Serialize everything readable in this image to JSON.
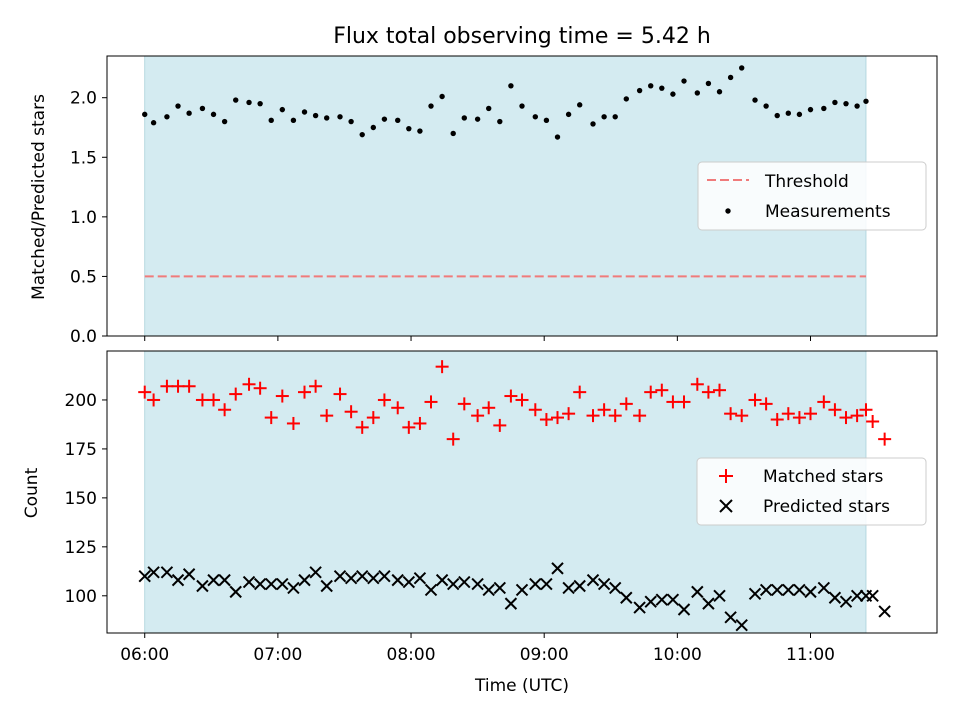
{
  "title": "Flux total observing time = 5.42 h",
  "xlabel": "Time (UTC)",
  "xticks": [
    "06:00",
    "07:00",
    "08:00",
    "09:00",
    "10:00",
    "11:00"
  ],
  "colors": {
    "band": "#d4ebf1",
    "threshold": "#f07b7b",
    "matched": "#ff0000",
    "predicted": "#000000",
    "measurement": "#000000"
  },
  "chart_data": [
    {
      "type": "scatter",
      "ylabel": "Matched/Predicted stars",
      "ylim": [
        0,
        2.35
      ],
      "yticks": [
        "0.0",
        "0.5",
        "1.0",
        "1.5",
        "2.0"
      ],
      "xlim": [
        "05:43",
        "11:57"
      ],
      "shaded_region": [
        "06:00",
        "11:25"
      ],
      "grid": false,
      "legend_position": "center-right",
      "threshold": {
        "name": "Threshold",
        "y": 0.5,
        "x_range": [
          "06:00",
          "11:25"
        ]
      },
      "series": [
        {
          "name": "Measurements",
          "x": [
            "06:00",
            "06:04",
            "06:10",
            "06:15",
            "06:20",
            "06:26",
            "06:31",
            "06:36",
            "06:41",
            "06:47",
            "06:52",
            "06:57",
            "07:02",
            "07:07",
            "07:12",
            "07:17",
            "07:22",
            "07:28",
            "07:33",
            "07:38",
            "07:43",
            "07:48",
            "07:54",
            "07:59",
            "08:04",
            "08:09",
            "08:14",
            "08:19",
            "08:24",
            "08:30",
            "08:35",
            "08:40",
            "08:45",
            "08:50",
            "08:56",
            "09:01",
            "09:06",
            "09:11",
            "09:16",
            "09:22",
            "09:27",
            "09:32",
            "09:37",
            "09:43",
            "09:48",
            "09:53",
            "09:58",
            "10:03",
            "10:09",
            "10:14",
            "10:19",
            "10:24",
            "10:29",
            "10:35",
            "10:40",
            "10:45",
            "10:50",
            "10:55",
            "11:00",
            "11:06",
            "11:11",
            "11:16",
            "11:21",
            "11:25"
          ],
          "y": [
            1.86,
            1.79,
            1.84,
            1.93,
            1.87,
            1.91,
            1.86,
            1.8,
            1.98,
            1.96,
            1.95,
            1.81,
            1.9,
            1.81,
            1.88,
            1.85,
            1.83,
            1.84,
            1.8,
            1.69,
            1.75,
            1.82,
            1.81,
            1.74,
            1.72,
            1.93,
            2.01,
            1.7,
            1.83,
            1.82,
            1.91,
            1.8,
            2.1,
            1.93,
            1.84,
            1.81,
            1.67,
            1.86,
            1.94,
            1.78,
            1.84,
            1.84,
            1.99,
            2.06,
            2.1,
            2.08,
            2.03,
            2.14,
            2.04,
            2.12,
            2.05,
            2.17,
            2.25,
            1.98,
            1.93,
            1.85,
            1.87,
            1.86,
            1.9,
            1.91,
            1.96,
            1.95,
            1.93,
            1.97
          ]
        }
      ]
    },
    {
      "type": "scatter",
      "ylabel": "Count",
      "ylim": [
        81,
        225
      ],
      "yticks": [
        "100",
        "125",
        "150",
        "175",
        "200"
      ],
      "xlim": [
        "05:43",
        "11:57"
      ],
      "shaded_region": [
        "06:00",
        "11:25"
      ],
      "grid": false,
      "legend_position": "center-right",
      "series": [
        {
          "name": "Matched stars",
          "x": [
            "06:00",
            "06:04",
            "06:10",
            "06:15",
            "06:20",
            "06:26",
            "06:31",
            "06:36",
            "06:41",
            "06:47",
            "06:52",
            "06:57",
            "07:02",
            "07:07",
            "07:12",
            "07:17",
            "07:22",
            "07:28",
            "07:33",
            "07:38",
            "07:43",
            "07:48",
            "07:54",
            "07:59",
            "08:04",
            "08:09",
            "08:14",
            "08:19",
            "08:24",
            "08:30",
            "08:35",
            "08:40",
            "08:45",
            "08:50",
            "08:56",
            "09:01",
            "09:06",
            "09:11",
            "09:16",
            "09:22",
            "09:27",
            "09:32",
            "09:37",
            "09:43",
            "09:48",
            "09:53",
            "09:58",
            "10:03",
            "10:09",
            "10:14",
            "10:19",
            "10:24",
            "10:29",
            "10:35",
            "10:40",
            "10:45",
            "10:50",
            "10:55",
            "11:00",
            "11:06",
            "11:11",
            "11:16",
            "11:21",
            "11:25",
            "11:28"
          ],
          "y": [
            204,
            200,
            207,
            207,
            207,
            200,
            200,
            195,
            203,
            208,
            206,
            191,
            202,
            188,
            204,
            207,
            192,
            203,
            194,
            186,
            191,
            200,
            196,
            186,
            188,
            199,
            217,
            180,
            198,
            192,
            196,
            187,
            202,
            200,
            195,
            190,
            191,
            193,
            204,
            192,
            195,
            192,
            198,
            192,
            204,
            205,
            199,
            199,
            208,
            204,
            205,
            193,
            192,
            200,
            198,
            190,
            193,
            191,
            193,
            199,
            195,
            191,
            192,
            195,
            189
          ],
          "extra_last_y": 180
        },
        {
          "name": "Predicted stars",
          "x": [
            "06:00",
            "06:04",
            "06:10",
            "06:15",
            "06:20",
            "06:26",
            "06:31",
            "06:36",
            "06:41",
            "06:47",
            "06:52",
            "06:57",
            "07:02",
            "07:07",
            "07:12",
            "07:17",
            "07:22",
            "07:28",
            "07:33",
            "07:38",
            "07:43",
            "07:48",
            "07:54",
            "07:59",
            "08:04",
            "08:09",
            "08:14",
            "08:19",
            "08:24",
            "08:30",
            "08:35",
            "08:40",
            "08:45",
            "08:50",
            "08:56",
            "09:01",
            "09:06",
            "09:11",
            "09:16",
            "09:22",
            "09:27",
            "09:32",
            "09:37",
            "09:43",
            "09:48",
            "09:53",
            "09:58",
            "10:03",
            "10:09",
            "10:14",
            "10:19",
            "10:24",
            "10:29",
            "10:35",
            "10:40",
            "10:45",
            "10:50",
            "10:55",
            "11:00",
            "11:06",
            "11:11",
            "11:16",
            "11:21",
            "11:25",
            "11:28"
          ],
          "y": [
            110,
            112,
            112,
            108,
            111,
            105,
            108,
            108,
            102,
            107,
            106,
            106,
            106,
            104,
            108,
            112,
            105,
            110,
            109,
            110,
            109,
            110,
            108,
            107,
            109,
            103,
            108,
            106,
            107,
            106,
            103,
            104,
            96,
            103,
            106,
            106,
            114,
            104,
            105,
            108,
            106,
            104,
            99,
            94,
            97,
            98,
            98,
            93,
            102,
            96,
            100,
            89,
            85,
            101,
            103,
            103,
            103,
            103,
            102,
            104,
            99,
            97,
            100,
            100,
            100
          ],
          "extra_last_y": 92
        }
      ]
    }
  ]
}
